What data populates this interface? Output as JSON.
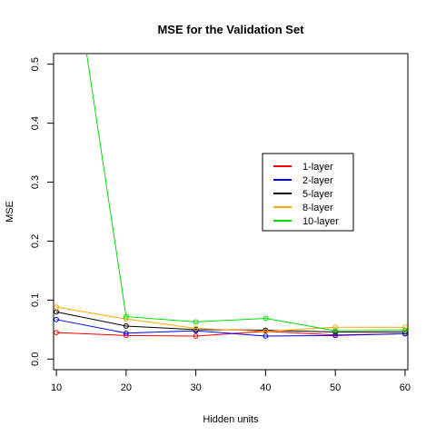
{
  "chart_data": {
    "type": "line",
    "title": "MSE for the Validation Set",
    "xlabel": "Hidden units",
    "ylabel": "MSE",
    "x": [
      10,
      20,
      30,
      40,
      50,
      60
    ],
    "xlim": [
      9.6,
      60.4
    ],
    "ylim": [
      -0.018,
      0.518
    ],
    "xticks": [
      "10",
      "20",
      "30",
      "40",
      "50",
      "60"
    ],
    "yticks": [
      "0.0",
      "0.1",
      "0.2",
      "0.3",
      "0.4",
      "0.5"
    ],
    "grid": false,
    "legend_position": "center-right",
    "series": [
      {
        "name": "1-layer",
        "color": "#ff0000",
        "values": [
          0.045,
          0.04,
          0.039,
          0.047,
          0.041,
          0.043
        ]
      },
      {
        "name": "2-layer",
        "color": "#0000ff",
        "values": [
          0.067,
          0.044,
          0.048,
          0.039,
          0.04,
          0.043
        ]
      },
      {
        "name": "5-layer",
        "color": "#000000",
        "values": [
          0.08,
          0.056,
          0.05,
          0.049,
          0.046,
          0.046
        ]
      },
      {
        "name": "8-layer",
        "color": "#ffa500",
        "values": [
          0.088,
          0.068,
          0.052,
          0.047,
          0.054,
          0.054
        ]
      },
      {
        "name": "10-layer",
        "color": "#00dd00",
        "values": [
          0.86,
          0.072,
          0.063,
          0.069,
          0.048,
          0.049
        ]
      }
    ]
  }
}
